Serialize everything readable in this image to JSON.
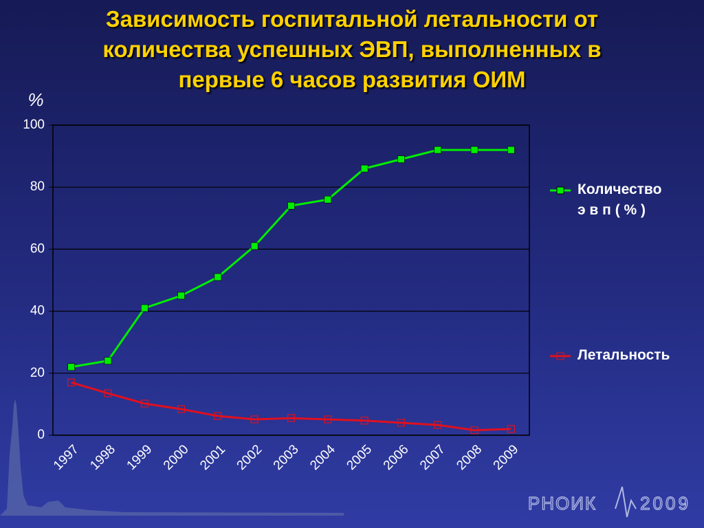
{
  "chart_data": {
    "type": "line",
    "title": "Зависимость госпитальной летальности от\nколичества успешных ЭВП, выполненных в\nпервые 6 часов развития ОИМ",
    "y_label": "%",
    "categories": [
      "1997",
      "1998",
      "1999",
      "2000",
      "2001",
      "2002",
      "2003",
      "2004",
      "2005",
      "2006",
      "2007",
      "2008",
      "2009"
    ],
    "series": [
      {
        "name": "Количество\nэ в п ( % )",
        "color": "#00ee00",
        "marker": "filled-square",
        "values": [
          22,
          24,
          41,
          45,
          51,
          61,
          74,
          76,
          86,
          89,
          92,
          92,
          92
        ]
      },
      {
        "name": "Летальность",
        "color": "#e0101e",
        "marker": "hollow-square",
        "values": [
          17,
          13.5,
          10.2,
          8.4,
          6.2,
          5.1,
          5.5,
          5.1,
          4.7,
          4,
          3.3,
          1.6,
          2
        ]
      }
    ],
    "ylim": [
      0,
      100
    ],
    "yticks": [
      0,
      20,
      40,
      60,
      80,
      100
    ],
    "grid": true
  },
  "logo": "РНОИК",
  "logo_year": "2009"
}
